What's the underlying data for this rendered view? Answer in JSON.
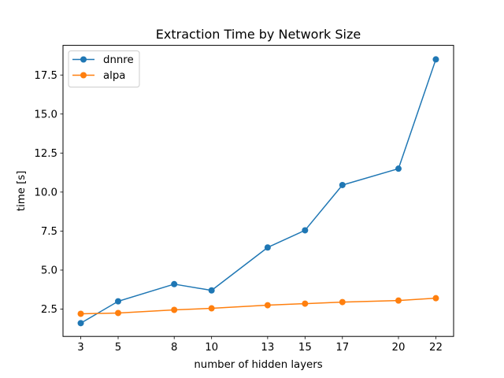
{
  "chart_data": {
    "type": "line",
    "title": "Extraction Time by Network Size",
    "xlabel": "number of hidden layers",
    "ylabel": "time [s]",
    "x": [
      3,
      5,
      8,
      10,
      13,
      15,
      17,
      20,
      22
    ],
    "x_ticks": [
      3,
      5,
      8,
      10,
      13,
      15,
      17,
      20,
      22
    ],
    "y_ticks": [
      2.5,
      5.0,
      7.5,
      10.0,
      12.5,
      15.0,
      17.5
    ],
    "y_tick_labels": [
      "2.5",
      "5.0",
      "7.5",
      "10.0",
      "12.5",
      "15.0",
      "17.5"
    ],
    "xlim": [
      2.05,
      22.95
    ],
    "ylim": [
      0.75,
      19.4
    ],
    "grid": false,
    "legend_position": "top-left",
    "series": [
      {
        "name": "dnnre",
        "color": "#1f77b4",
        "marker": "circle",
        "values": [
          1.6,
          3.0,
          4.1,
          3.7,
          6.45,
          7.55,
          10.45,
          11.5,
          18.5
        ]
      },
      {
        "name": "alpa",
        "color": "#ff7f0e",
        "marker": "circle",
        "values": [
          2.2,
          2.25,
          2.45,
          2.55,
          2.75,
          2.85,
          2.95,
          3.05,
          3.2
        ]
      }
    ]
  }
}
